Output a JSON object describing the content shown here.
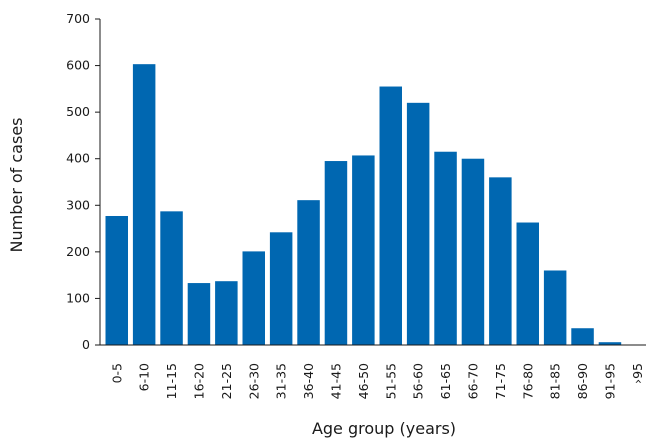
{
  "chart_data": {
    "type": "bar",
    "title": "",
    "xlabel": "Age group (years)",
    "ylabel": "Number of cases",
    "ylim": [
      0,
      700
    ],
    "yticks": [
      0,
      100,
      200,
      300,
      400,
      500,
      600,
      700
    ],
    "grid": false,
    "bar_color": "#0067B1",
    "categories": [
      "0-5",
      "6-10",
      "11-15",
      "16-20",
      "21-25",
      "26-30",
      "31-35",
      "36-40",
      "41-45",
      "46-50",
      "51-55",
      "56-60",
      "61-65",
      "66-70",
      "71-75",
      "76-80",
      "81-85",
      "86-90",
      "91-95",
      "›95"
    ],
    "values": [
      277,
      603,
      287,
      133,
      137,
      201,
      242,
      311,
      395,
      407,
      555,
      520,
      415,
      400,
      360,
      263,
      160,
      36,
      6,
      0
    ]
  }
}
